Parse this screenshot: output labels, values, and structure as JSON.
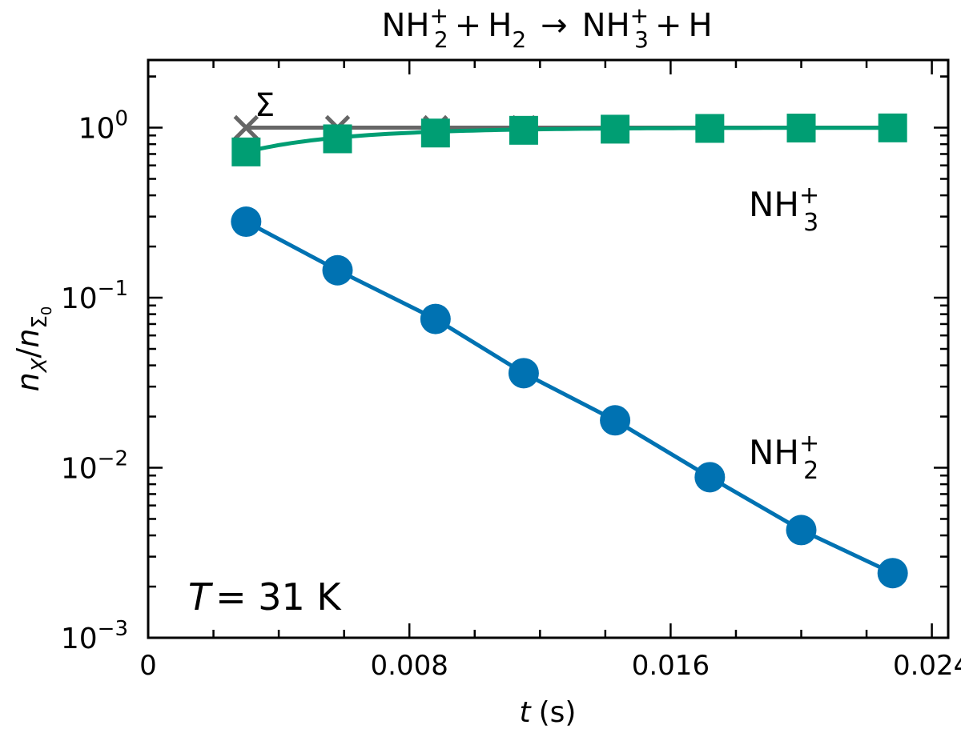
{
  "chart_data": {
    "type": "line",
    "title": {
      "reactant1": "NH",
      "reactant1_sub": "2",
      "reactant1_sup": "+",
      "plus1": "+",
      "reactant2": "H",
      "reactant2_sub": "2",
      "arrow": "→",
      "product1": "NH",
      "product1_sub": "3",
      "product1_sup": "+",
      "plus2": "+",
      "product2": "H"
    },
    "xlabel": {
      "var": "t",
      "unit": "(s)"
    },
    "ylabel": {
      "n": "n",
      "sub_x": "X",
      "slash": "/",
      "n2": "n",
      "sub_sigma": "Σ",
      "sub_zero": "0"
    },
    "x_ticks": [
      "0",
      "0.008",
      "0.016",
      "0.024"
    ],
    "x_tick_values": [
      0,
      0.008,
      0.016,
      0.024
    ],
    "y_ticks": [
      {
        "base": "10",
        "exp": "0",
        "value": 1
      },
      {
        "base": "10",
        "exp": "−1",
        "value": 0.1
      },
      {
        "base": "10",
        "exp": "−2",
        "value": 0.01
      },
      {
        "base": "10",
        "exp": "−3",
        "value": 0.001
      }
    ],
    "xlim": [
      0,
      0.0245
    ],
    "ylim": [
      0.001,
      2.5
    ],
    "yscale": "log",
    "x": [
      0.003,
      0.0058,
      0.0088,
      0.0115,
      0.0143,
      0.0172,
      0.02,
      0.0228
    ],
    "series": [
      {
        "name": "Σ",
        "label": "Σ",
        "marker": "x",
        "color": "#666666",
        "values": [
          1.0,
          1.0,
          1.0,
          1.0,
          1.0,
          1.0,
          1.0,
          1.0
        ]
      },
      {
        "name": "NH3+",
        "label": "NH",
        "label_sub": "3",
        "label_sup": "+",
        "marker": "square",
        "color": "#009e73",
        "values": [
          0.72,
          0.86,
          0.93,
          0.965,
          0.98,
          0.99,
          0.995,
          0.997
        ]
      },
      {
        "name": "NH2+",
        "label": "NH",
        "label_sub": "2",
        "label_sup": "+",
        "marker": "circle",
        "color": "#0072b2",
        "values": [
          0.28,
          0.145,
          0.075,
          0.036,
          0.019,
          0.0088,
          0.0043,
          0.0024
        ]
      }
    ],
    "annotation": {
      "var": "T",
      "text": "= 31 K"
    }
  }
}
